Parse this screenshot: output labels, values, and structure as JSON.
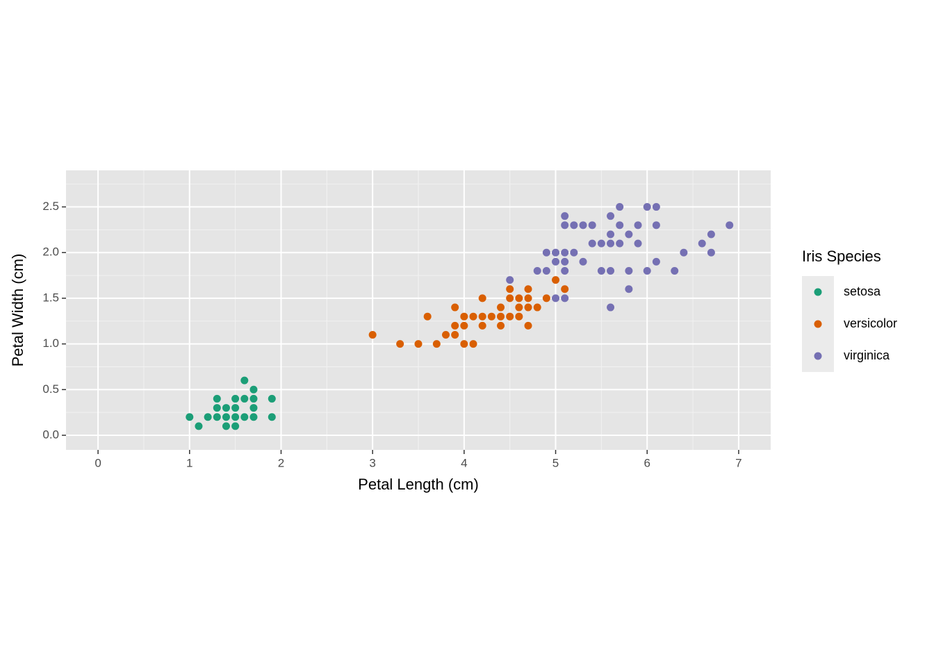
{
  "chart_data": {
    "type": "scatter",
    "x_label": "Petal Length (cm)",
    "y_label": "Petal Width (cm)",
    "legend_title": "Iris Species",
    "legend": "right",
    "grid": true,
    "minor_grid": true,
    "xlim": [
      -0.35,
      7.35
    ],
    "ylim": [
      -0.16,
      2.9
    ],
    "xticks": [
      0,
      1,
      2,
      3,
      4,
      5,
      6,
      7
    ],
    "yticks": [
      {
        "value": 0,
        "label": "0.0"
      },
      {
        "value": 0.5,
        "label": "0.5"
      },
      {
        "value": 1,
        "label": "1.0"
      },
      {
        "value": 1.5,
        "label": "1.5"
      },
      {
        "value": 2,
        "label": "2.0"
      },
      {
        "value": 2.5,
        "label": "2.5"
      }
    ],
    "series": [
      {
        "name": "setosa",
        "color": "#1b9e77",
        "x": [
          1.0,
          1.1,
          1.2,
          1.3,
          1.3,
          1.3,
          1.4,
          1.4,
          1.4,
          1.5,
          1.5,
          1.5,
          1.5,
          1.6,
          1.6,
          1.6,
          1.7,
          1.7,
          1.7,
          1.7,
          1.9,
          1.9
        ],
        "values": [
          0.2,
          0.1,
          0.2,
          0.2,
          0.3,
          0.4,
          0.2,
          0.3,
          0.1,
          0.2,
          0.3,
          0.4,
          0.1,
          0.2,
          0.4,
          0.6,
          0.2,
          0.3,
          0.4,
          0.5,
          0.2,
          0.4
        ]
      },
      {
        "name": "versicolor",
        "color": "#d95f02",
        "x": [
          3.0,
          3.3,
          3.5,
          3.6,
          3.7,
          3.8,
          3.9,
          3.9,
          3.9,
          4.0,
          4.0,
          4.0,
          4.1,
          4.1,
          4.2,
          4.2,
          4.2,
          4.3,
          4.4,
          4.4,
          4.4,
          4.5,
          4.5,
          4.5,
          4.6,
          4.6,
          4.6,
          4.7,
          4.7,
          4.7,
          4.7,
          4.8,
          4.9,
          5.0,
          5.1
        ],
        "values": [
          1.1,
          1.0,
          1.0,
          1.3,
          1.0,
          1.1,
          1.4,
          1.2,
          1.1,
          1.3,
          1.2,
          1.0,
          1.3,
          1.0,
          1.5,
          1.3,
          1.2,
          1.3,
          1.4,
          1.3,
          1.2,
          1.6,
          1.5,
          1.3,
          1.5,
          1.4,
          1.3,
          1.6,
          1.5,
          1.4,
          1.2,
          1.4,
          1.5,
          1.7,
          1.6
        ]
      },
      {
        "name": "virginica",
        "color": "#7570b3",
        "x": [
          4.5,
          4.8,
          4.9,
          4.9,
          5.0,
          5.0,
          5.0,
          5.1,
          5.1,
          5.1,
          5.1,
          5.1,
          5.1,
          5.2,
          5.2,
          5.3,
          5.3,
          5.4,
          5.4,
          5.5,
          5.5,
          5.6,
          5.6,
          5.6,
          5.6,
          5.6,
          5.7,
          5.7,
          5.7,
          5.8,
          5.8,
          5.8,
          5.9,
          5.9,
          6.0,
          6.0,
          6.1,
          6.1,
          6.1,
          6.3,
          6.4,
          6.6,
          6.7,
          6.7,
          6.9
        ],
        "values": [
          1.7,
          1.8,
          2.0,
          1.8,
          2.0,
          1.9,
          1.5,
          2.4,
          2.3,
          2.0,
          1.9,
          1.8,
          1.5,
          2.3,
          2.0,
          2.3,
          1.9,
          2.3,
          2.1,
          2.1,
          1.8,
          2.4,
          2.2,
          2.1,
          1.8,
          1.4,
          2.5,
          2.3,
          2.1,
          2.2,
          1.8,
          1.6,
          2.3,
          2.1,
          2.5,
          1.8,
          2.5,
          2.3,
          1.9,
          1.8,
          2.0,
          2.1,
          2.2,
          2.0,
          2.3
        ]
      }
    ]
  }
}
